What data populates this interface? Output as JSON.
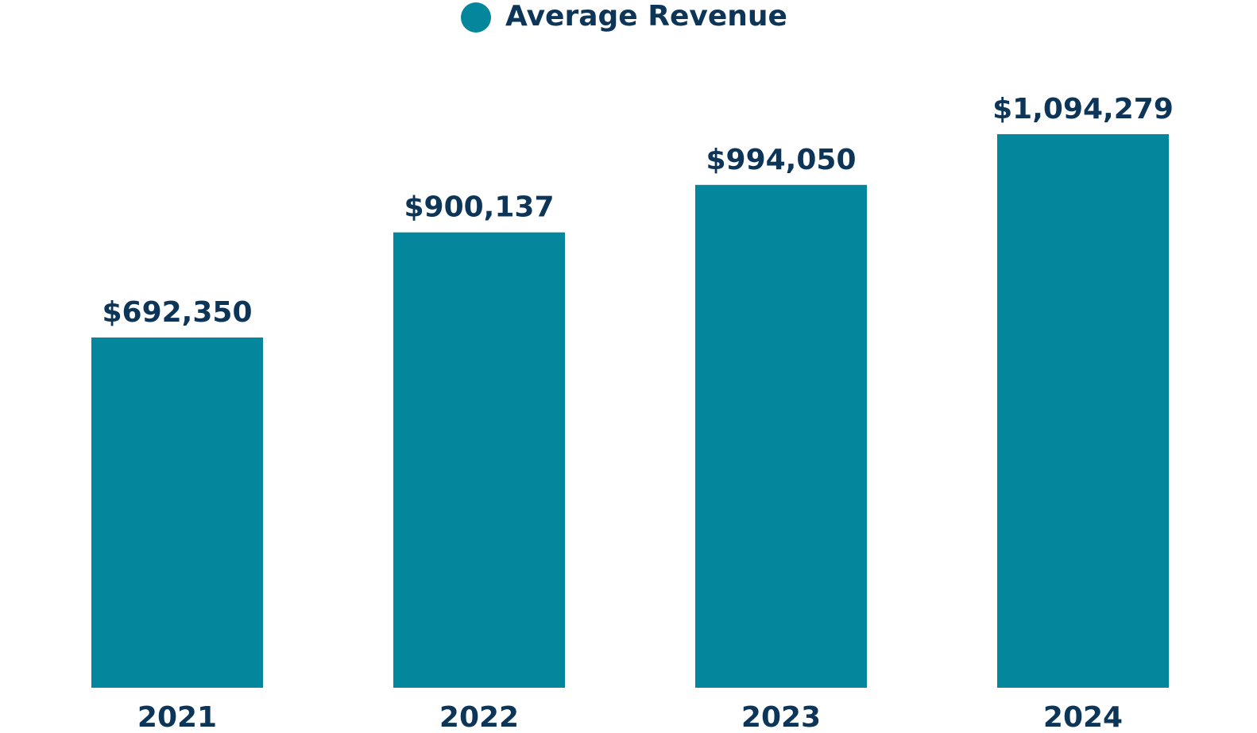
{
  "chart_data": {
    "type": "bar",
    "categories": [
      "2021",
      "2022",
      "2023",
      "2024"
    ],
    "series": [
      {
        "name": "Average Revenue",
        "values": [
          692350,
          900137,
          994050,
          1094279
        ],
        "labels": [
          "$692,350",
          "$900,137",
          "$994,050",
          "$1,094,279"
        ]
      }
    ],
    "title": "",
    "xlabel": "",
    "ylabel": "",
    "ylim": [
      0,
      1100000
    ],
    "grid": false,
    "legend_position": "top-center"
  },
  "colors": {
    "bar": "#04879c",
    "text": "#0d3558"
  }
}
